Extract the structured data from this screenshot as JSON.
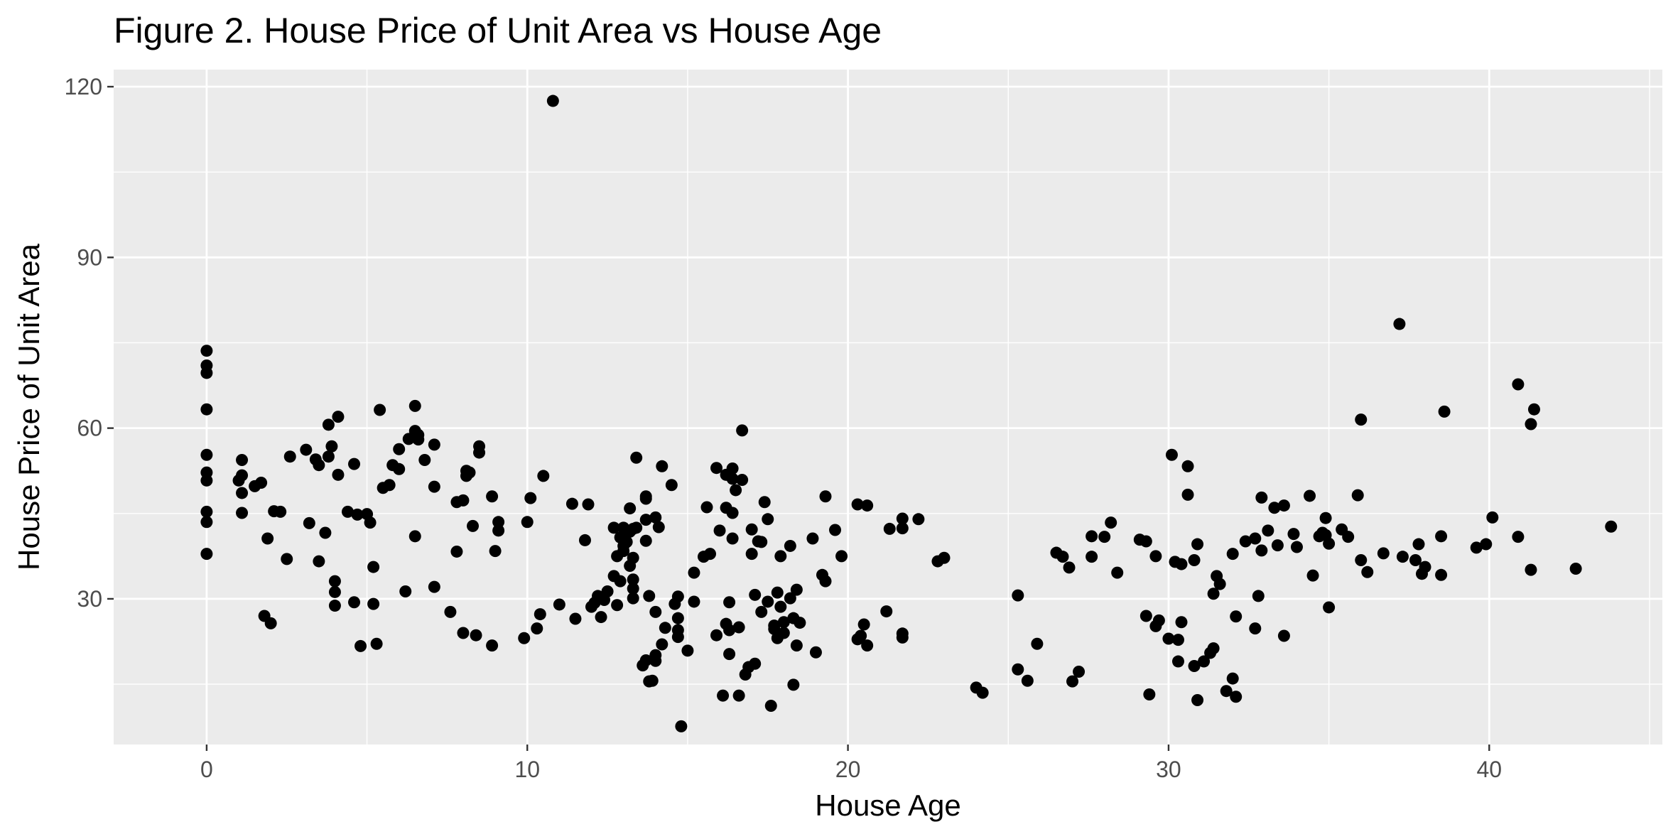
{
  "chart_data": {
    "type": "scatter",
    "title": "Figure 2. House Price of Unit Area vs House Age",
    "xlabel": "House Age",
    "ylabel": "House Price of Unit Area",
    "xlim": [
      -2.9,
      45.4
    ],
    "ylim": [
      4.4,
      123.0
    ],
    "x_ticks": [
      0,
      10,
      20,
      30,
      40
    ],
    "x_tick_labels": [
      "0",
      "10",
      "20",
      "30",
      "40"
    ],
    "y_ticks": [
      30,
      60,
      90,
      120
    ],
    "y_tick_labels": [
      "30",
      "60",
      "90",
      "120"
    ],
    "grid": true,
    "legend": "none",
    "colors": {
      "panel": "#ebebeb",
      "grid": "#ffffff",
      "point": "#000000"
    },
    "points": [
      [
        0,
        73.6
      ],
      [
        0,
        71.0
      ],
      [
        0,
        69.7
      ],
      [
        0,
        63.3
      ],
      [
        0,
        55.3
      ],
      [
        0,
        52.2
      ],
      [
        0,
        50.8
      ],
      [
        0,
        45.3
      ],
      [
        0,
        43.5
      ],
      [
        0,
        37.9
      ],
      [
        1.0,
        50.8
      ],
      [
        1.1,
        54.4
      ],
      [
        1.1,
        51.7
      ],
      [
        1.1,
        48.6
      ],
      [
        1.1,
        45.1
      ],
      [
        1.5,
        49.8
      ],
      [
        1.7,
        50.4
      ],
      [
        1.8,
        27.0
      ],
      [
        1.9,
        40.6
      ],
      [
        2.0,
        25.7
      ],
      [
        2.1,
        45.4
      ],
      [
        2.3,
        45.3
      ],
      [
        2.5,
        37.0
      ],
      [
        2.6,
        55.0
      ],
      [
        3.1,
        56.2
      ],
      [
        3.2,
        43.3
      ],
      [
        3.4,
        54.5
      ],
      [
        3.5,
        53.5
      ],
      [
        3.5,
        36.6
      ],
      [
        3.7,
        41.6
      ],
      [
        3.8,
        55.0
      ],
      [
        3.8,
        60.6
      ],
      [
        3.9,
        56.8
      ],
      [
        4.0,
        33.1
      ],
      [
        4.0,
        31.2
      ],
      [
        4.1,
        51.8
      ],
      [
        4.0,
        28.8
      ],
      [
        4.1,
        62.0
      ],
      [
        4.4,
        45.3
      ],
      [
        4.6,
        29.4
      ],
      [
        4.6,
        53.7
      ],
      [
        4.7,
        44.8
      ],
      [
        4.8,
        21.7
      ],
      [
        5.0,
        44.9
      ],
      [
        5.1,
        43.4
      ],
      [
        5.2,
        29.1
      ],
      [
        5.2,
        35.6
      ],
      [
        5.3,
        22.1
      ],
      [
        5.4,
        63.2
      ],
      [
        5.5,
        49.5
      ],
      [
        5.7,
        50.0
      ],
      [
        5.8,
        53.5
      ],
      [
        6.0,
        56.3
      ],
      [
        6.0,
        52.8
      ],
      [
        6.2,
        31.3
      ],
      [
        6.3,
        58.1
      ],
      [
        6.5,
        41.0
      ],
      [
        6.5,
        63.9
      ],
      [
        6.5,
        59.5
      ],
      [
        6.6,
        58.8
      ],
      [
        6.6,
        58.0
      ],
      [
        6.8,
        54.4
      ],
      [
        7.1,
        57.1
      ],
      [
        7.1,
        49.7
      ],
      [
        7.1,
        32.1
      ],
      [
        7.6,
        27.7
      ],
      [
        7.8,
        47.0
      ],
      [
        7.8,
        38.3
      ],
      [
        8.0,
        47.3
      ],
      [
        8.0,
        24.0
      ],
      [
        8.1,
        51.6
      ],
      [
        8.1,
        52.5
      ],
      [
        8.2,
        52.2
      ],
      [
        8.3,
        42.8
      ],
      [
        8.4,
        23.6
      ],
      [
        8.5,
        56.8
      ],
      [
        8.5,
        55.7
      ],
      [
        8.9,
        21.8
      ],
      [
        8.9,
        48.0
      ],
      [
        9.0,
        38.4
      ],
      [
        9.1,
        43.5
      ],
      [
        9.1,
        42.0
      ],
      [
        9.9,
        23.1
      ],
      [
        10.0,
        43.5
      ],
      [
        10.1,
        47.7
      ],
      [
        10.3,
        24.8
      ],
      [
        10.4,
        27.3
      ],
      [
        10.5,
        51.6
      ],
      [
        10.8,
        117.5
      ],
      [
        11.0,
        29.0
      ],
      [
        11.4,
        46.7
      ],
      [
        11.5,
        26.5
      ],
      [
        11.8,
        40.3
      ],
      [
        11.9,
        46.6
      ],
      [
        12.0,
        28.6
      ],
      [
        12.1,
        29.3
      ],
      [
        12.2,
        30.5
      ],
      [
        12.3,
        26.8
      ],
      [
        12.4,
        29.8
      ],
      [
        12.5,
        31.3
      ],
      [
        12.7,
        34.0
      ],
      [
        12.7,
        42.5
      ],
      [
        12.8,
        37.5
      ],
      [
        12.8,
        28.9
      ],
      [
        12.9,
        33.1
      ],
      [
        12.9,
        40.8
      ],
      [
        13.0,
        42.5
      ],
      [
        13.0,
        39.3
      ],
      [
        13.0,
        38.4
      ],
      [
        13.1,
        40.0
      ],
      [
        13.2,
        41.8
      ],
      [
        13.2,
        35.8
      ],
      [
        13.2,
        45.9
      ],
      [
        13.3,
        31.8
      ],
      [
        13.3,
        30.1
      ],
      [
        13.3,
        33.4
      ],
      [
        13.3,
        37.2
      ],
      [
        13.3,
        42.3
      ],
      [
        13.4,
        42.5
      ],
      [
        13.4,
        54.8
      ],
      [
        13.6,
        18.3
      ],
      [
        13.7,
        19.2
      ],
      [
        13.7,
        40.2
      ],
      [
        13.7,
        47.6
      ],
      [
        13.7,
        48.0
      ],
      [
        13.7,
        43.9
      ],
      [
        13.8,
        15.5
      ],
      [
        13.8,
        30.5
      ],
      [
        13.9,
        15.6
      ],
      [
        14.0,
        20.1
      ],
      [
        14.0,
        19.1
      ],
      [
        14.0,
        27.7
      ],
      [
        14.0,
        44.3
      ],
      [
        14.1,
        42.6
      ],
      [
        14.2,
        53.3
      ],
      [
        14.2,
        22.0
      ],
      [
        14.3,
        24.9
      ],
      [
        14.5,
        50.0
      ],
      [
        14.6,
        29.1
      ],
      [
        14.7,
        26.6
      ],
      [
        14.7,
        30.4
      ],
      [
        14.7,
        24.5
      ],
      [
        14.7,
        23.3
      ],
      [
        14.8,
        7.6
      ],
      [
        15.0,
        20.9
      ],
      [
        15.2,
        34.6
      ],
      [
        15.2,
        29.5
      ],
      [
        15.5,
        37.4
      ],
      [
        15.6,
        46.1
      ],
      [
        15.7,
        37.9
      ],
      [
        15.9,
        23.6
      ],
      [
        15.9,
        53.0
      ],
      [
        16.0,
        42.0
      ],
      [
        16.1,
        13.0
      ],
      [
        16.2,
        25.6
      ],
      [
        16.2,
        51.8
      ],
      [
        16.2,
        46.0
      ],
      [
        16.3,
        29.4
      ],
      [
        16.3,
        20.3
      ],
      [
        16.3,
        24.5
      ],
      [
        16.4,
        52.9
      ],
      [
        16.4,
        51.1
      ],
      [
        16.4,
        45.1
      ],
      [
        16.4,
        40.6
      ],
      [
        16.5,
        49.1
      ],
      [
        16.6,
        13.0
      ],
      [
        16.6,
        25.0
      ],
      [
        16.7,
        59.6
      ],
      [
        16.7,
        50.9
      ],
      [
        16.8,
        16.7
      ],
      [
        16.9,
        18.0
      ],
      [
        17.0,
        37.9
      ],
      [
        17.0,
        42.2
      ],
      [
        17.1,
        18.6
      ],
      [
        17.1,
        30.7
      ],
      [
        17.2,
        40.1
      ],
      [
        17.3,
        27.7
      ],
      [
        17.3,
        40.0
      ],
      [
        17.4,
        47.0
      ],
      [
        17.5,
        29.5
      ],
      [
        17.5,
        44.0
      ],
      [
        17.6,
        11.2
      ],
      [
        17.7,
        24.7
      ],
      [
        17.7,
        25.3
      ],
      [
        17.8,
        31.1
      ],
      [
        17.8,
        23.1
      ],
      [
        17.9,
        28.6
      ],
      [
        17.9,
        37.5
      ],
      [
        18.0,
        24.0
      ],
      [
        18.0,
        25.9
      ],
      [
        18.2,
        30.1
      ],
      [
        18.2,
        39.3
      ],
      [
        18.3,
        14.9
      ],
      [
        18.3,
        26.6
      ],
      [
        18.4,
        21.8
      ],
      [
        18.4,
        31.6
      ],
      [
        18.5,
        25.8
      ],
      [
        18.9,
        40.6
      ],
      [
        19.0,
        20.6
      ],
      [
        19.2,
        34.2
      ],
      [
        19.3,
        33.1
      ],
      [
        19.3,
        48.0
      ],
      [
        19.6,
        42.1
      ],
      [
        19.8,
        37.5
      ],
      [
        20.3,
        46.6
      ],
      [
        20.3,
        22.9
      ],
      [
        20.4,
        23.5
      ],
      [
        20.5,
        25.5
      ],
      [
        20.6,
        46.4
      ],
      [
        20.6,
        21.8
      ],
      [
        21.2,
        27.8
      ],
      [
        21.3,
        42.3
      ],
      [
        21.7,
        44.1
      ],
      [
        21.7,
        42.4
      ],
      [
        21.7,
        23.9
      ],
      [
        21.7,
        23.2
      ],
      [
        22.2,
        44.0
      ],
      [
        22.8,
        36.6
      ],
      [
        23.0,
        37.2
      ],
      [
        24.0,
        14.4
      ],
      [
        24.2,
        13.5
      ],
      [
        25.3,
        30.6
      ],
      [
        25.3,
        17.6
      ],
      [
        25.6,
        15.6
      ],
      [
        25.9,
        22.1
      ],
      [
        26.5,
        38.1
      ],
      [
        26.7,
        37.4
      ],
      [
        26.9,
        35.5
      ],
      [
        27.0,
        15.5
      ],
      [
        27.2,
        17.2
      ],
      [
        27.6,
        41.0
      ],
      [
        27.6,
        37.4
      ],
      [
        28.0,
        40.9
      ],
      [
        28.2,
        43.4
      ],
      [
        28.4,
        34.6
      ],
      [
        29.1,
        40.4
      ],
      [
        29.3,
        40.1
      ],
      [
        29.3,
        27.0
      ],
      [
        29.4,
        13.2
      ],
      [
        29.6,
        25.2
      ],
      [
        29.6,
        37.5
      ],
      [
        29.7,
        26.2
      ],
      [
        30.0,
        23.0
      ],
      [
        30.1,
        55.3
      ],
      [
        30.2,
        36.5
      ],
      [
        30.3,
        22.8
      ],
      [
        30.3,
        19.0
      ],
      [
        30.4,
        25.9
      ],
      [
        30.4,
        36.1
      ],
      [
        30.6,
        53.3
      ],
      [
        30.6,
        48.3
      ],
      [
        30.8,
        18.2
      ],
      [
        30.8,
        36.8
      ],
      [
        30.9,
        39.6
      ],
      [
        30.9,
        12.2
      ],
      [
        31.1,
        19.0
      ],
      [
        31.3,
        20.5
      ],
      [
        31.4,
        30.9
      ],
      [
        31.4,
        21.3
      ],
      [
        31.5,
        34.0
      ],
      [
        31.6,
        32.6
      ],
      [
        31.8,
        13.8
      ],
      [
        32.0,
        16.0
      ],
      [
        32.0,
        37.9
      ],
      [
        32.1,
        12.8
      ],
      [
        32.1,
        26.9
      ],
      [
        32.4,
        40.1
      ],
      [
        32.7,
        40.6
      ],
      [
        32.7,
        24.8
      ],
      [
        32.8,
        30.5
      ],
      [
        32.9,
        47.8
      ],
      [
        32.9,
        38.5
      ],
      [
        33.1,
        42.0
      ],
      [
        33.3,
        46.0
      ],
      [
        33.4,
        39.4
      ],
      [
        33.6,
        46.4
      ],
      [
        33.6,
        23.5
      ],
      [
        33.9,
        41.4
      ],
      [
        34.0,
        39.1
      ],
      [
        34.4,
        48.1
      ],
      [
        34.5,
        34.1
      ],
      [
        34.7,
        41.0
      ],
      [
        34.8,
        41.6
      ],
      [
        34.9,
        44.2
      ],
      [
        34.9,
        41.2
      ],
      [
        35.0,
        28.5
      ],
      [
        35.0,
        39.7
      ],
      [
        35.4,
        42.2
      ],
      [
        35.6,
        40.9
      ],
      [
        35.9,
        48.2
      ],
      [
        36.0,
        61.5
      ],
      [
        36.0,
        36.8
      ],
      [
        36.2,
        34.7
      ],
      [
        36.7,
        38.0
      ],
      [
        37.2,
        78.3
      ],
      [
        37.3,
        37.4
      ],
      [
        37.7,
        36.8
      ],
      [
        37.8,
        39.6
      ],
      [
        37.9,
        34.4
      ],
      [
        38.0,
        35.6
      ],
      [
        38.5,
        41.0
      ],
      [
        38.5,
        34.2
      ],
      [
        38.6,
        62.9
      ],
      [
        39.6,
        39.0
      ],
      [
        39.9,
        39.6
      ],
      [
        40.1,
        44.3
      ],
      [
        40.9,
        67.7
      ],
      [
        40.9,
        40.9
      ],
      [
        41.3,
        60.7
      ],
      [
        41.4,
        63.3
      ],
      [
        41.3,
        35.1
      ],
      [
        42.7,
        35.3
      ],
      [
        43.8,
        42.7
      ]
    ]
  }
}
